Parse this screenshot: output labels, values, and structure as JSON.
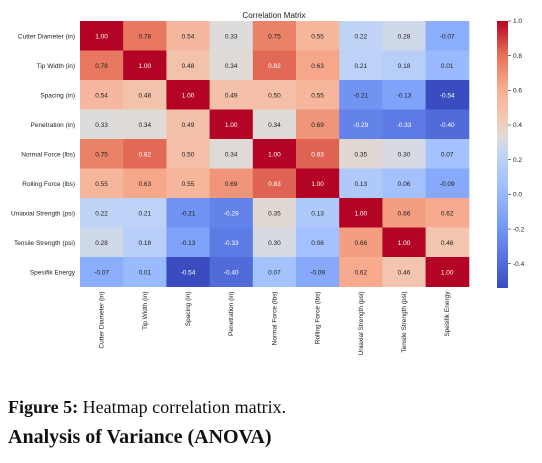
{
  "chart_data": {
    "type": "heatmap",
    "title": "Correlation Matrix",
    "labels": [
      "Cutter Diameter (in)",
      "Tip Width (in)",
      "Spacing (in)",
      "Penetration (in)",
      "Normal Force (lbs)",
      "Rolling Force (lbs)",
      "Uniaxial Strength (psi)",
      "Tensile Strength (psi)",
      "Spesifik Energy"
    ],
    "matrix": [
      [
        1.0,
        0.78,
        0.54,
        0.33,
        0.75,
        0.55,
        0.22,
        0.28,
        -0.07
      ],
      [
        0.78,
        1.0,
        0.48,
        0.34,
        0.82,
        0.63,
        0.21,
        0.18,
        0.01
      ],
      [
        0.54,
        0.48,
        1.0,
        0.49,
        0.5,
        0.55,
        -0.21,
        -0.13,
        -0.54
      ],
      [
        0.33,
        0.34,
        0.49,
        1.0,
        0.34,
        0.69,
        -0.29,
        -0.33,
        -0.4
      ],
      [
        0.75,
        0.82,
        0.5,
        0.34,
        1.0,
        0.83,
        0.35,
        0.3,
        0.07
      ],
      [
        0.55,
        0.63,
        0.55,
        0.69,
        0.83,
        1.0,
        0.13,
        0.06,
        -0.09
      ],
      [
        0.22,
        0.21,
        -0.21,
        -0.29,
        0.35,
        0.13,
        1.0,
        0.66,
        0.62
      ],
      [
        0.28,
        0.18,
        -0.13,
        -0.33,
        0.3,
        0.06,
        0.66,
        1.0,
        0.46
      ],
      [
        -0.07,
        0.01,
        -0.54,
        -0.4,
        0.07,
        -0.09,
        0.62,
        0.46,
        1.0
      ]
    ],
    "colormap": "coolwarm",
    "vmin": -0.54,
    "vmax": 1.0,
    "colorbar_ticks": [
      "1.0",
      "0.8",
      "0.6",
      "0.4",
      "0.2",
      "0.0",
      "-0.2",
      "-0.4"
    ],
    "colorbar_tick_values": [
      1.0,
      0.8,
      0.6,
      0.4,
      0.2,
      0.0,
      -0.2,
      -0.4
    ]
  },
  "caption": {
    "label": "Figure 5:",
    "text": " Heatmap correlation matrix."
  },
  "section_heading": "Analysis of Variance (ANOVA)"
}
